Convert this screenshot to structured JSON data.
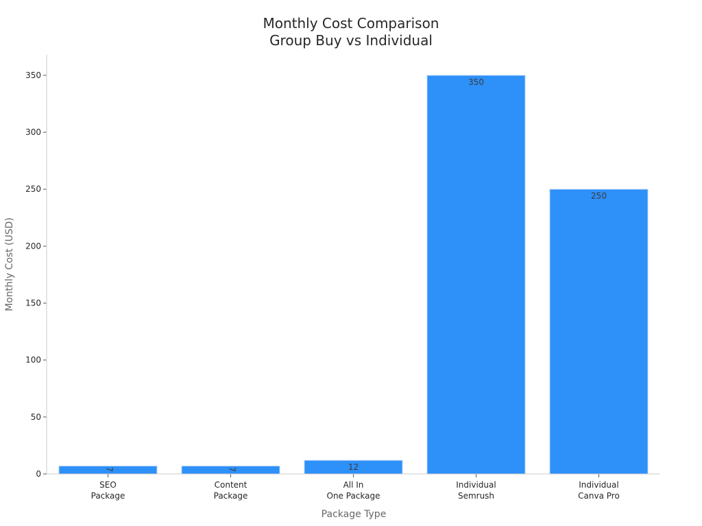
{
  "chart_data": {
    "type": "bar",
    "title": [
      "Monthly Cost Comparison",
      "Group Buy vs Individual"
    ],
    "xlabel": "Package Type",
    "ylabel": "Monthly Cost (USD)",
    "categories": [
      [
        "SEO",
        "Package"
      ],
      [
        "Content",
        "Package"
      ],
      [
        "All In",
        "One Package"
      ],
      [
        "Individual",
        "Semrush"
      ],
      [
        "Individual",
        "Canva Pro"
      ]
    ],
    "values": [
      7,
      7,
      12,
      350,
      250
    ],
    "data_labels": [
      "7",
      "7",
      "12",
      "350",
      "250"
    ],
    "ylim": [
      0,
      368
    ],
    "yticks": [
      0,
      50,
      100,
      150,
      200,
      250,
      300,
      350
    ],
    "grid": false,
    "legend": "none",
    "bar_color": "#2e90f9",
    "bar_edge_color": "#c9dff7"
  }
}
